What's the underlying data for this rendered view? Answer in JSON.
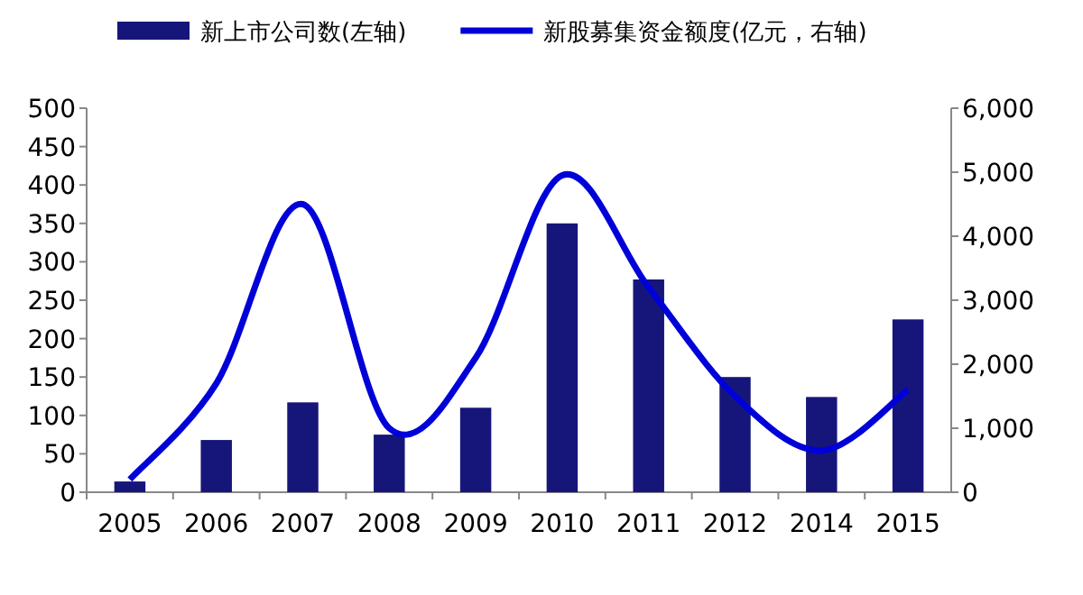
{
  "chart_data": {
    "type": "bar",
    "categories": [
      "2005",
      "2006",
      "2007",
      "2008",
      "2009",
      "2010",
      "2011",
      "2012",
      "2014",
      "2015"
    ],
    "series": [
      {
        "name": "新上市公司数(左轴)",
        "color": "#16167a",
        "values": [
          14,
          68,
          117,
          75,
          110,
          350,
          277,
          150,
          124,
          225
        ]
      },
      {
        "name": "新股募集资金额度(亿元，右轴)",
        "type": "line",
        "axis": "y2",
        "color": "#0000d8",
        "values": [
          200,
          1700,
          4500,
          1000,
          2100,
          4950,
          3200,
          1500,
          650,
          1600
        ]
      }
    ],
    "ylim": [
      0,
      500
    ],
    "yticks": [
      0,
      50,
      100,
      150,
      200,
      250,
      300,
      350,
      400,
      450,
      500
    ],
    "y2lim": [
      0,
      6000
    ],
    "y2ticks": [
      {
        "value": 0,
        "label": "0"
      },
      {
        "value": 1000,
        "label": "1,000"
      },
      {
        "value": 2000,
        "label": "2,000"
      },
      {
        "value": 3000,
        "label": "3,000"
      },
      {
        "value": 4000,
        "label": "4,000"
      },
      {
        "value": 5000,
        "label": "5,000"
      },
      {
        "value": 6000,
        "label": "6,000"
      }
    ],
    "legend": "top",
    "grid": false,
    "marker": "none",
    "line_style": "solid"
  }
}
